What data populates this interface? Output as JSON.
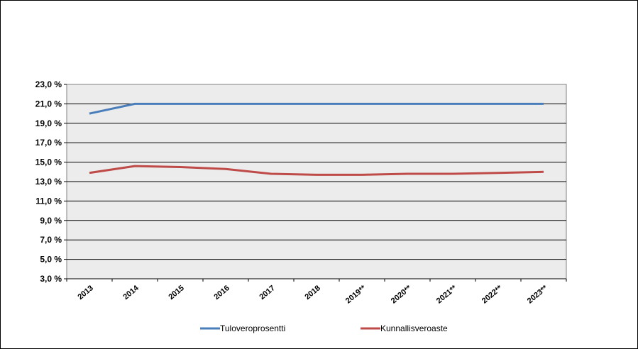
{
  "chart_data": {
    "type": "line",
    "title": "",
    "xlabel": "",
    "ylabel": "",
    "categories": [
      "2013",
      "2014",
      "2015",
      "2016",
      "2017",
      "2018",
      "2019**",
      "2020**",
      "2021**",
      "2022**",
      "2023**"
    ],
    "y_ticks": [
      "3,0 %",
      "5,0 %",
      "7,0 %",
      "9,0 %",
      "11,0 %",
      "13,0 %",
      "15,0 %",
      "17,0 %",
      "19,0 %",
      "21,0 %",
      "23,0 %"
    ],
    "ylim": [
      3.0,
      23.0
    ],
    "y_step": 2.0,
    "grid": true,
    "legend": "bottom",
    "series": [
      {
        "name": "Tuloveroprosentti",
        "color": "#4a7ebb",
        "values": [
          20.0,
          21.0,
          21.0,
          21.0,
          21.0,
          21.0,
          21.0,
          21.0,
          21.0,
          21.0,
          21.0
        ]
      },
      {
        "name": "Kunnallisveroaste",
        "color": "#be4b48",
        "values": [
          13.9,
          14.6,
          14.5,
          14.3,
          13.8,
          13.7,
          13.7,
          13.8,
          13.8,
          13.9,
          14.0
        ]
      }
    ]
  }
}
